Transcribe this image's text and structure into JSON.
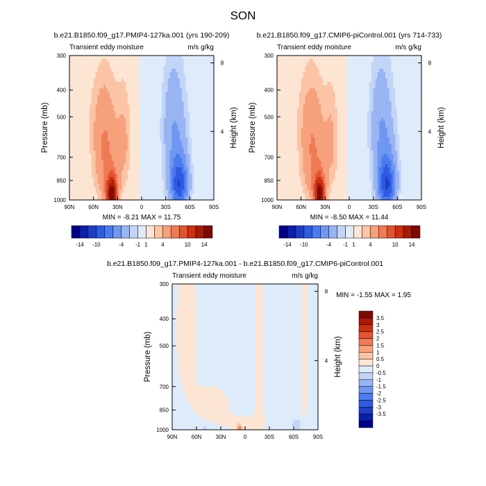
{
  "figure": {
    "title": "SON"
  },
  "chart_data": [
    {
      "type": "heatmap",
      "title": "b.e21.B1850.f09_g17.PMIP4-127ka.001 (yrs 190-209)",
      "left_label": "Transient eddy moisture",
      "right_label": "m/s g/kg",
      "xlabel": "",
      "ylabel": "Pressure (mb)",
      "y2label": "Height (km)",
      "x_ticks": [
        "90N",
        "60N",
        "30N",
        "0",
        "30S",
        "60S",
        "90S"
      ],
      "y_ticks": [
        "300",
        "400",
        "500",
        "700",
        "850",
        "1000"
      ],
      "y2_ticks": [
        "8",
        "4"
      ],
      "stats": "MIN =  -8.21  MAX =  11.75",
      "stat_min": -8.21,
      "stat_max": 11.75,
      "colorbar_orientation": "horizontal",
      "colorbar_labels": [
        "-14",
        "-10",
        "-4",
        "-1",
        "1",
        "4",
        "10",
        "14"
      ],
      "field_peaks": {
        "positive": 11.75,
        "negative": -8.21
      }
    },
    {
      "type": "heatmap",
      "title": "b.e21.B1850.f09_g17.CMIP6-piControl.001 (yrs 714-733)",
      "left_label": "Transient eddy moisture",
      "right_label": "m/s g/kg",
      "xlabel": "",
      "ylabel": "Pressure (mb)",
      "y2label": "Height (km)",
      "x_ticks": [
        "90N",
        "60N",
        "30N",
        "0",
        "30S",
        "60S",
        "90S"
      ],
      "y_ticks": [
        "300",
        "400",
        "500",
        "700",
        "850",
        "1000"
      ],
      "y2_ticks": [
        "8",
        "4"
      ],
      "stats": "MIN =  -8.50  MAX =  11.44",
      "stat_min": -8.5,
      "stat_max": 11.44,
      "colorbar_orientation": "horizontal",
      "colorbar_labels": [
        "-14",
        "-10",
        "-4",
        "-1",
        "1",
        "4",
        "10",
        "14"
      ],
      "field_peaks": {
        "positive": 11.44,
        "negative": -8.5
      }
    },
    {
      "type": "heatmap",
      "title": "b.e21.B1850.f09_g17.PMIP4-127ka.001 - b.e21.B1850.f09_g17.CMIP6-piControl.001",
      "left_label": "Transient eddy moisture",
      "right_label": "m/s g/kg",
      "xlabel": "",
      "ylabel": "Pressure (mb)",
      "y2label": "Height (km)",
      "x_ticks": [
        "90N",
        "60N",
        "30N",
        "0",
        "30S",
        "60S",
        "90S"
      ],
      "y_ticks": [
        "300",
        "400",
        "500",
        "700",
        "850",
        "1000"
      ],
      "y2_ticks": [
        "8",
        "4"
      ],
      "stats": "MIN =  -1.55  MAX =   1.95",
      "stat_min": -1.55,
      "stat_max": 1.95,
      "colorbar_orientation": "vertical",
      "colorbar_labels": [
        "3.5",
        "3",
        "2.5",
        "2",
        "1.5",
        "1",
        "0.5",
        "0",
        "-0.5",
        "-1",
        "-1.5",
        "-2",
        "-2.5",
        "-3",
        "-3.5"
      ]
    }
  ],
  "colors": {
    "top_scale": [
      "#00008b",
      "#0b1fa8",
      "#1f3cc7",
      "#2f5be3",
      "#4b7bef",
      "#6e97f2",
      "#98b4f2",
      "#c3d5f7",
      "#deebfb",
      "#fde5d3",
      "#fbc4a6",
      "#f6a07c",
      "#ee7b55",
      "#e4532f",
      "#cc2f12",
      "#a81a08",
      "#7e0b03"
    ],
    "diff_scale": [
      "#7e0b03",
      "#a81a08",
      "#cc2f12",
      "#e4532f",
      "#ee7b55",
      "#f6a07c",
      "#fbc4a6",
      "#fde5d3",
      "#deebfb",
      "#c3d5f7",
      "#98b4f2",
      "#6e97f2",
      "#4b7bef",
      "#2f5be3",
      "#1f3cc7",
      "#0b1fa8",
      "#00008b"
    ]
  }
}
